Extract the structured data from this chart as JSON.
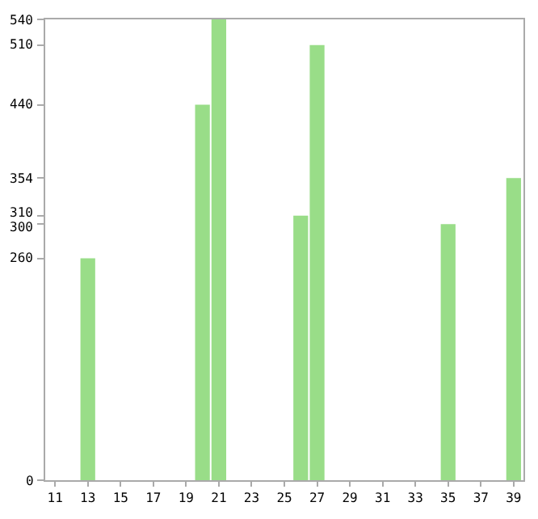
{
  "chart_data": {
    "type": "bar",
    "categories": [
      "11",
      null,
      "13",
      null,
      "15",
      null,
      "17",
      null,
      "19",
      null,
      "21",
      null,
      "23",
      null,
      "25",
      null,
      "27",
      null,
      "29",
      null,
      "31",
      null,
      "33",
      null,
      "35",
      null,
      "37",
      null,
      "39"
    ],
    "values": [
      0,
      0,
      260,
      0,
      0,
      0,
      0,
      0,
      0,
      440,
      540,
      0,
      0,
      0,
      0,
      310,
      510,
      0,
      0,
      0,
      0,
      0,
      0,
      0,
      300,
      0,
      0,
      0,
      354
    ],
    "color": "#99dd88",
    "ylim": [
      0,
      540
    ],
    "yticks": [
      0,
      260,
      300,
      310,
      354,
      440,
      510,
      540
    ]
  }
}
